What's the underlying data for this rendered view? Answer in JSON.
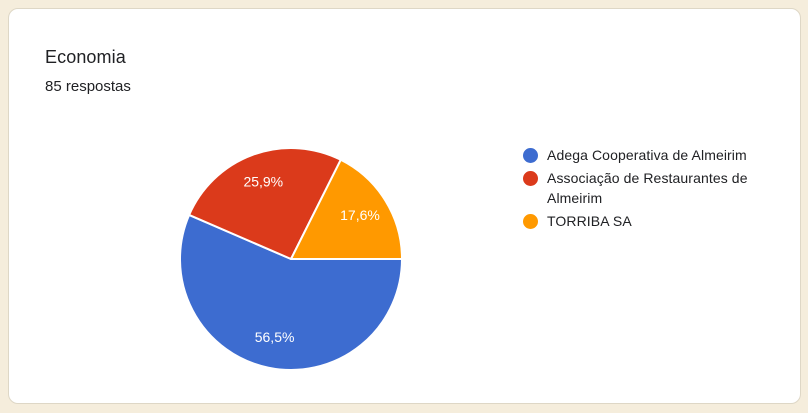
{
  "card": {
    "title": "Economia",
    "responses_label": "85 respostas"
  },
  "colors": {
    "page_background": "#F5EDDC",
    "card_background": "#FFFFFF",
    "card_border": "#DED7C6",
    "text": "#202124",
    "slice_label_text": "#FFFFFF",
    "slice_separator": "#FFFFFF"
  },
  "chart_data": {
    "type": "pie",
    "title": "Economia",
    "subtitle": "85 respostas",
    "categories": [
      "Adega Cooperativa de Almeirim",
      "Associação de Restaurantes de Almeirim",
      "TORRIBA SA"
    ],
    "values": [
      56.5,
      25.9,
      17.6
    ],
    "value_labels": [
      "56,5%",
      "25,9%",
      "17,6%"
    ],
    "slice_colors": [
      "#3D6CD0",
      "#DB3A1B",
      "#FF9900"
    ],
    "legend_position": "right",
    "start_angle": "3-oclock-clockwise",
    "label_radius_fraction": 0.73
  }
}
